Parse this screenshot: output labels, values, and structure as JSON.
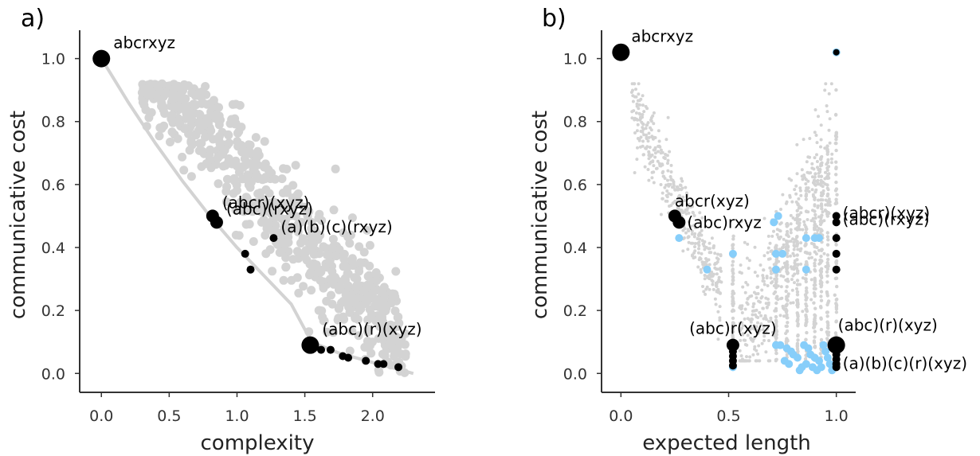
{
  "chart_data": [
    {
      "panel": "a)",
      "type": "scatter",
      "xlabel": "complexity",
      "ylabel": "communicative cost",
      "xlim": [
        -0.16,
        2.46
      ],
      "ylim": [
        -0.06,
        1.09
      ],
      "xticks": [
        "0.0",
        "0.5",
        "1.0",
        "1.5",
        "2.0"
      ],
      "yticks": [
        "0.0",
        "0.2",
        "0.4",
        "0.6",
        "0.8",
        "1.0"
      ],
      "grid": false,
      "colors": {
        "background_points": "#d3d3d3",
        "frontier_curve": "#d3d3d3",
        "highlighted": "#000000"
      },
      "frontier_curve": [
        [
          0.0,
          1.0
        ],
        [
          0.2,
          0.86
        ],
        [
          0.4,
          0.73
        ],
        [
          0.6,
          0.61
        ],
        [
          0.8,
          0.5
        ],
        [
          1.0,
          0.4
        ],
        [
          1.2,
          0.31
        ],
        [
          1.4,
          0.22
        ],
        [
          1.55,
          0.1
        ],
        [
          1.75,
          0.065
        ],
        [
          2.0,
          0.035
        ],
        [
          2.3,
          0.0
        ]
      ],
      "background_cloud": {
        "x_range": [
          0.25,
          2.3
        ],
        "y_range": [
          0.0,
          0.92
        ],
        "n_points_approx": 700
      },
      "highlighted_points": [
        {
          "x": 0.0,
          "y": 1.0,
          "size": "large",
          "label": "abcrxyz"
        },
        {
          "x": 0.82,
          "y": 0.5,
          "size": "medium",
          "label": "(abcr)(xyz)"
        },
        {
          "x": 0.85,
          "y": 0.48,
          "size": "medium",
          "label": "(abc)(rxyz)"
        },
        {
          "x": 1.27,
          "y": 0.43,
          "size": "small",
          "label": "(a)(b)(c)(rxyz)"
        },
        {
          "x": 1.06,
          "y": 0.38,
          "size": "small",
          "label": ""
        },
        {
          "x": 1.1,
          "y": 0.33,
          "size": "small",
          "label": ""
        },
        {
          "x": 1.54,
          "y": 0.09,
          "size": "large",
          "label": "(abc)(r)(xyz)"
        },
        {
          "x": 1.62,
          "y": 0.075,
          "size": "small",
          "label": ""
        },
        {
          "x": 1.69,
          "y": 0.075,
          "size": "small",
          "label": ""
        },
        {
          "x": 1.78,
          "y": 0.055,
          "size": "small",
          "label": ""
        },
        {
          "x": 1.82,
          "y": 0.05,
          "size": "small",
          "label": ""
        },
        {
          "x": 1.95,
          "y": 0.04,
          "size": "small",
          "label": ""
        },
        {
          "x": 2.04,
          "y": 0.03,
          "size": "small",
          "label": ""
        },
        {
          "x": 2.08,
          "y": 0.03,
          "size": "small",
          "label": ""
        },
        {
          "x": 2.19,
          "y": 0.02,
          "size": "small",
          "label": ""
        }
      ]
    },
    {
      "panel": "b)",
      "type": "scatter",
      "xlabel": "expected length",
      "ylabel": "communicative cost",
      "xlim": [
        -0.09,
        1.09
      ],
      "ylim": [
        -0.06,
        1.09
      ],
      "xticks": [
        "0.0",
        "0.5",
        "1.0"
      ],
      "yticks": [
        "0.0",
        "0.2",
        "0.4",
        "0.6",
        "0.8",
        "1.0"
      ],
      "grid": false,
      "colors": {
        "background_points": "#d3d3d3",
        "blue_points": "#87cefa",
        "highlighted": "#000000"
      },
      "background_cloud": {
        "x_range": [
          0.05,
          1.0
        ],
        "y_range": [
          0.05,
          0.92
        ],
        "n_points_approx": 1300
      },
      "blue_points": [
        [
          0.27,
          0.43
        ],
        [
          0.4,
          0.33
        ],
        [
          0.52,
          0.38
        ],
        [
          0.52,
          0.02
        ],
        [
          0.71,
          0.48
        ],
        [
          0.73,
          0.5
        ],
        [
          0.72,
          0.38
        ],
        [
          0.75,
          0.38
        ],
        [
          0.72,
          0.33
        ],
        [
          0.86,
          0.43
        ],
        [
          0.86,
          0.33
        ],
        [
          0.9,
          0.43
        ],
        [
          0.92,
          0.43
        ],
        [
          0.72,
          0.09
        ],
        [
          0.74,
          0.09
        ],
        [
          0.77,
          0.08
        ],
        [
          0.79,
          0.07
        ],
        [
          0.8,
          0.06
        ],
        [
          0.82,
          0.05
        ],
        [
          0.76,
          0.04
        ],
        [
          0.78,
          0.03
        ],
        [
          0.85,
          0.09
        ],
        [
          0.87,
          0.08
        ],
        [
          0.88,
          0.06
        ],
        [
          0.9,
          0.05
        ],
        [
          0.92,
          0.04
        ],
        [
          0.86,
          0.03
        ],
        [
          0.89,
          0.02
        ],
        [
          0.91,
          0.01
        ],
        [
          0.94,
          0.09
        ],
        [
          0.95,
          0.07
        ],
        [
          0.96,
          0.05
        ],
        [
          0.93,
          0.02
        ],
        [
          0.97,
          0.03
        ],
        [
          0.98,
          0.01
        ],
        [
          0.84,
          0.02
        ],
        [
          0.83,
          0.01
        ],
        [
          0.99,
          0.08
        ],
        [
          1.0,
          1.02
        ]
      ],
      "highlighted_points": [
        {
          "x": 0.0,
          "y": 1.02,
          "size": "large",
          "label": "abcrxyz"
        },
        {
          "x": 0.25,
          "y": 0.5,
          "size": "medium",
          "label": "abcr(xyz)"
        },
        {
          "x": 0.27,
          "y": 0.48,
          "size": "medium",
          "label": "(abc)rxyz"
        },
        {
          "x": 0.52,
          "y": 0.09,
          "size": "medium",
          "label": "(abc)r(xyz)"
        },
        {
          "x": 0.52,
          "y": 0.07,
          "size": "small",
          "label": ""
        },
        {
          "x": 0.52,
          "y": 0.055,
          "size": "small",
          "label": ""
        },
        {
          "x": 0.52,
          "y": 0.04,
          "size": "small",
          "label": ""
        },
        {
          "x": 0.52,
          "y": 0.025,
          "size": "small",
          "label": ""
        },
        {
          "x": 1.0,
          "y": 1.02,
          "size": "tiny",
          "label": ""
        },
        {
          "x": 1.0,
          "y": 0.5,
          "size": "small",
          "label": "(abcr)(xyz)"
        },
        {
          "x": 1.0,
          "y": 0.48,
          "size": "small",
          "label": "(abc)(rxyz)"
        },
        {
          "x": 1.0,
          "y": 0.43,
          "size": "small",
          "label": ""
        },
        {
          "x": 1.0,
          "y": 0.38,
          "size": "small",
          "label": ""
        },
        {
          "x": 1.0,
          "y": 0.33,
          "size": "small",
          "label": ""
        },
        {
          "x": 1.0,
          "y": 0.09,
          "size": "large",
          "label": "(abc)(r)(xyz)"
        },
        {
          "x": 1.0,
          "y": 0.06,
          "size": "small",
          "label": ""
        },
        {
          "x": 1.0,
          "y": 0.045,
          "size": "small",
          "label": ""
        },
        {
          "x": 1.0,
          "y": 0.03,
          "size": "small",
          "label": ""
        },
        {
          "x": 1.0,
          "y": 0.02,
          "size": "small",
          "label": "(a)(b)(c)(r)(xyz)"
        }
      ]
    }
  ]
}
